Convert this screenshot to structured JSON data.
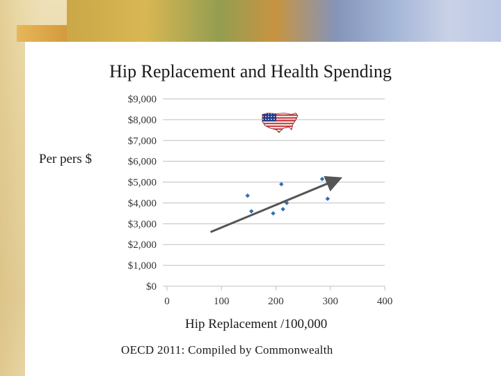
{
  "slide": {
    "title": "Hip Replacement and Health Spending",
    "y_axis_title": "Per pers $",
    "x_axis_title": "Hip Replacement /100,000",
    "source": "OECD 2011:  Compiled by Commonwealth"
  },
  "chart_data": {
    "type": "scatter",
    "title": "Hip Replacement and Health Spending",
    "xlabel": "Hip Replacement /100,000",
    "ylabel": "Per pers $",
    "xlim": [
      0,
      400
    ],
    "ylim": [
      0,
      9000
    ],
    "grid": true,
    "x_ticks": [
      0,
      100,
      200,
      300,
      400
    ],
    "x_tick_labels": [
      "0",
      "100",
      "200",
      "300",
      "400"
    ],
    "y_ticks": [
      0,
      1000,
      2000,
      3000,
      4000,
      5000,
      6000,
      7000,
      8000,
      9000
    ],
    "y_tick_labels": [
      "$0",
      "$1,000",
      "$2,000",
      "$3,000",
      "$4,000",
      "$5,000",
      "$6,000",
      "$7,000",
      "$8,000",
      "$9,000"
    ],
    "points": [
      {
        "x": 148,
        "y": 4350
      },
      {
        "x": 155,
        "y": 3600
      },
      {
        "x": 195,
        "y": 3500
      },
      {
        "x": 210,
        "y": 4900
      },
      {
        "x": 213,
        "y": 3700
      },
      {
        "x": 220,
        "y": 4000
      },
      {
        "x": 285,
        "y": 5150
      },
      {
        "x": 295,
        "y": 4200
      }
    ],
    "us_point": {
      "x": 207,
      "y": 7950
    },
    "trendline": {
      "x1": 80,
      "y1": 2600,
      "x2": 315,
      "y2": 5150
    }
  },
  "colors": {
    "marker": "#2f6fb3",
    "trendline": "#555555",
    "grid": "#bfbfbf",
    "flag_red": "#c4282b",
    "flag_blue": "#1f3a8a"
  }
}
